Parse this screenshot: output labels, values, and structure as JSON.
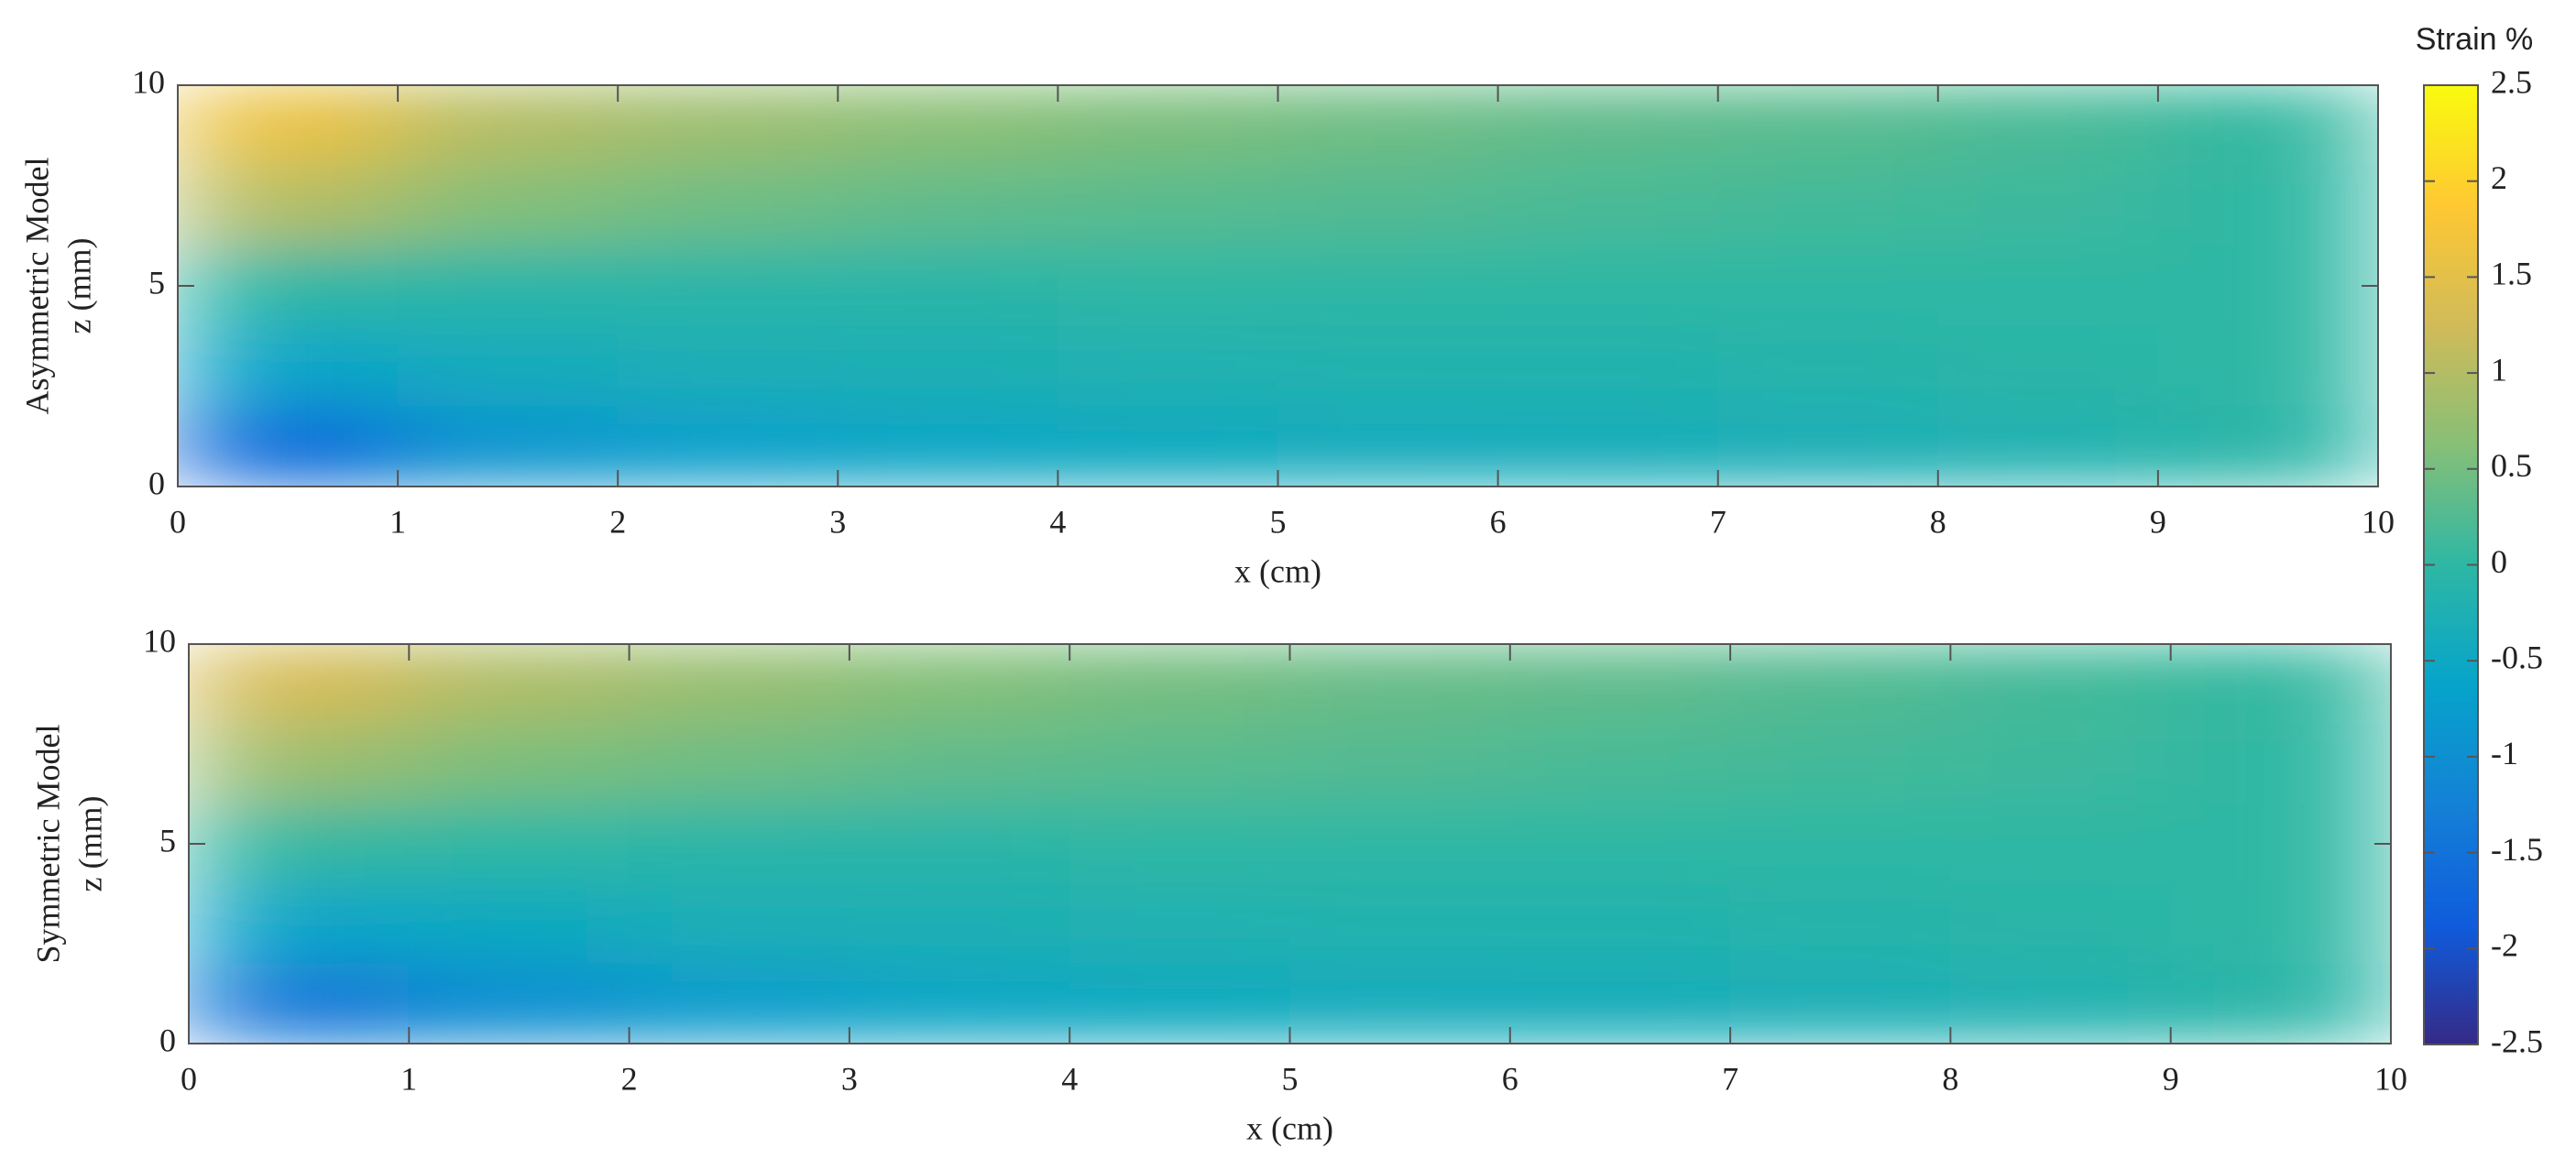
{
  "chart_data": [
    {
      "type": "heatmap",
      "xlabel": "x (cm)",
      "ylabel": [
        "Asymmetric Model",
        "z (mm)"
      ],
      "xlim": [
        0,
        10
      ],
      "xticks": [
        0,
        1,
        2,
        3,
        4,
        5,
        6,
        7,
        8,
        9,
        10
      ],
      "ylim": [
        0,
        10
      ],
      "yticks": [
        0,
        5,
        10
      ],
      "x": [
        0.5,
        1.5,
        2.5,
        3.5,
        4.5,
        5.5,
        6.5,
        7.5,
        8.5,
        9.5
      ],
      "y": [
        9,
        7,
        5,
        3,
        1
      ],
      "values": [
        [
          1.6,
          1.0,
          0.8,
          0.65,
          0.55,
          0.45,
          0.35,
          0.3,
          0.2,
          0.05
        ],
        [
          1.0,
          0.6,
          0.45,
          0.35,
          0.3,
          0.25,
          0.2,
          0.15,
          0.1,
          0.0
        ],
        [
          0.0,
          -0.05,
          -0.05,
          -0.05,
          0.0,
          0.0,
          0.0,
          0.0,
          0.0,
          0.0
        ],
        [
          -0.6,
          -0.4,
          -0.3,
          -0.25,
          -0.2,
          -0.15,
          -0.15,
          -0.1,
          -0.05,
          0.0
        ],
        [
          -1.6,
          -0.9,
          -0.7,
          -0.55,
          -0.45,
          -0.4,
          -0.35,
          -0.3,
          -0.2,
          -0.05
        ]
      ]
    },
    {
      "type": "heatmap",
      "xlabel": "x (cm)",
      "ylabel": [
        "Symmetric Model",
        "z (mm)"
      ],
      "xlim": [
        0,
        10
      ],
      "xticks": [
        0,
        1,
        2,
        3,
        4,
        5,
        6,
        7,
        8,
        9,
        10
      ],
      "ylim": [
        0,
        10
      ],
      "yticks": [
        0,
        5,
        10
      ],
      "x": [
        0.5,
        1.5,
        2.5,
        3.5,
        4.5,
        5.5,
        6.5,
        7.5,
        8.5,
        9.5
      ],
      "y": [
        9,
        7,
        5,
        3,
        1
      ],
      "values": [
        [
          1.3,
          0.95,
          0.75,
          0.6,
          0.5,
          0.4,
          0.35,
          0.25,
          0.15,
          0.05
        ],
        [
          0.8,
          0.55,
          0.45,
          0.35,
          0.3,
          0.25,
          0.2,
          0.15,
          0.1,
          0.0
        ],
        [
          0.05,
          0.0,
          -0.05,
          -0.05,
          0.0,
          0.0,
          0.0,
          0.0,
          0.0,
          0.0
        ],
        [
          -0.6,
          -0.45,
          -0.3,
          -0.25,
          -0.2,
          -0.15,
          -0.15,
          -0.1,
          -0.05,
          0.0
        ],
        [
          -1.4,
          -1.0,
          -0.75,
          -0.55,
          -0.45,
          -0.4,
          -0.35,
          -0.3,
          -0.2,
          -0.05
        ]
      ]
    }
  ],
  "colorbar": {
    "label": "Strain %",
    "colormap": "parula",
    "lim": [
      -2.5,
      2.5
    ],
    "ticks": [
      -2.5,
      -2,
      -1.5,
      -1,
      -0.5,
      0,
      0.5,
      1,
      1.5,
      2,
      2.5
    ]
  }
}
